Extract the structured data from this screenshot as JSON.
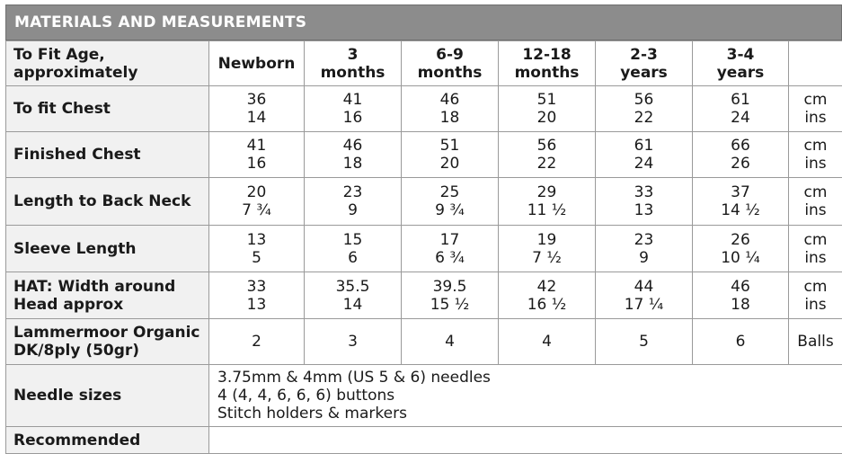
{
  "title": "MATERIALS AND MEASUREMENTS",
  "header": {
    "label": [
      "To Fit Age,",
      "approximately"
    ],
    "ages": [
      [
        "Newborn"
      ],
      [
        "3",
        "months"
      ],
      [
        "6-9",
        "months"
      ],
      [
        "12-18",
        "months"
      ],
      [
        "2-3",
        "years"
      ],
      [
        "3-4",
        "years"
      ]
    ]
  },
  "rows": [
    {
      "label": [
        "To fit Chest"
      ],
      "values": [
        [
          "36",
          "14"
        ],
        [
          "41",
          "16"
        ],
        [
          "46",
          "18"
        ],
        [
          "51",
          "20"
        ],
        [
          "56",
          "22"
        ],
        [
          "61",
          "24"
        ]
      ],
      "unit": [
        "cm",
        "ins"
      ]
    },
    {
      "label": [
        "Finished Chest"
      ],
      "values": [
        [
          "41",
          "16"
        ],
        [
          "46",
          "18"
        ],
        [
          "51",
          "20"
        ],
        [
          "56",
          "22"
        ],
        [
          "61",
          "24"
        ],
        [
          "66",
          "26"
        ]
      ],
      "unit": [
        "cm",
        "ins"
      ]
    },
    {
      "label": [
        "Length to Back Neck"
      ],
      "values": [
        [
          "20",
          "7 ¾"
        ],
        [
          "23",
          "9"
        ],
        [
          "25",
          "9 ¾"
        ],
        [
          "29",
          "11 ½"
        ],
        [
          "33",
          "13"
        ],
        [
          "37",
          "14 ½"
        ]
      ],
      "unit": [
        "cm",
        "ins"
      ]
    },
    {
      "label": [
        "Sleeve Length"
      ],
      "values": [
        [
          "13",
          "5"
        ],
        [
          "15",
          "6"
        ],
        [
          "17",
          "6 ¾"
        ],
        [
          "19",
          "7 ½"
        ],
        [
          "23",
          "9"
        ],
        [
          "26",
          "10 ¼"
        ]
      ],
      "unit": [
        "cm",
        "ins"
      ]
    },
    {
      "label": [
        "HAT: Width around",
        "Head approx"
      ],
      "values": [
        [
          "33",
          "13"
        ],
        [
          "35.5",
          "14"
        ],
        [
          "39.5",
          "15 ½"
        ],
        [
          "42",
          "16 ½"
        ],
        [
          "44",
          "17 ¼"
        ],
        [
          "46",
          "18"
        ]
      ],
      "unit": [
        "cm",
        "ins"
      ]
    },
    {
      "label": [
        "Lammermoor Organic",
        "DK/8ply (50gr)"
      ],
      "values": [
        [
          "2"
        ],
        [
          "3"
        ],
        [
          "4"
        ],
        [
          "4"
        ],
        [
          "5"
        ],
        [
          "6"
        ]
      ],
      "unit": [
        "Balls"
      ]
    }
  ],
  "needles": {
    "label": "Needle sizes",
    "lines": [
      "3.75mm & 4mm (US 5 & 6) needles",
      "4 (4, 4, 6, 6, 6) buttons",
      "Stitch holders & markers"
    ]
  },
  "partial_row_label": "Recommended"
}
